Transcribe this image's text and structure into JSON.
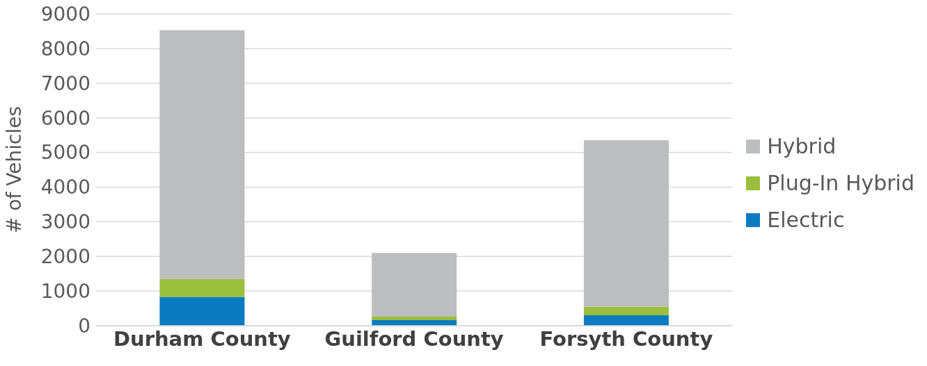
{
  "chart_data": {
    "type": "bar",
    "stacked": true,
    "ylabel": "# of Vehicles",
    "categories": [
      "Durham County",
      "Guilford County",
      "Forsyth County"
    ],
    "series": [
      {
        "name": "Electric",
        "color": "#0a7bc1",
        "values": [
          830,
          160,
          300
        ]
      },
      {
        "name": "Plug-In Hybrid",
        "color": "#9bbf3c",
        "values": [
          520,
          100,
          250
        ]
      },
      {
        "name": "Hybrid",
        "color": "#bcbdbf",
        "values": [
          7180,
          1840,
          4800
        ]
      }
    ],
    "ylim": [
      0,
      9000
    ],
    "yticks": [
      0,
      1000,
      2000,
      3000,
      4000,
      5000,
      6000,
      7000,
      8000,
      9000
    ],
    "grid": "y",
    "legend": "right"
  }
}
